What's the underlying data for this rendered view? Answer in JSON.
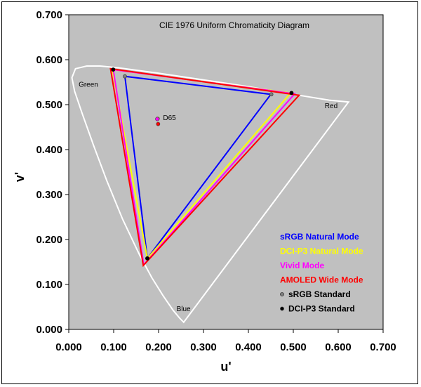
{
  "chart_data": {
    "type": "scatter",
    "title": "CIE 1976 Uniform Chromaticity Diagram",
    "xlabel": "u'",
    "ylabel": "v'",
    "xlim": [
      0,
      0.7
    ],
    "ylim": [
      0,
      0.7
    ],
    "x_ticks": [
      "0.000",
      "0.100",
      "0.200",
      "0.300",
      "0.400",
      "0.500",
      "0.600",
      "0.700"
    ],
    "y_ticks": [
      "0.000",
      "0.100",
      "0.200",
      "0.300",
      "0.400",
      "0.500",
      "0.600",
      "0.700"
    ],
    "grid": false,
    "legend_position": "bottom-right",
    "plot_background": "#c0c0c0",
    "locus": {
      "color": "#ffffff",
      "points": [
        [
          0.256,
          0.016
        ],
        [
          0.247,
          0.025
        ],
        [
          0.232,
          0.043
        ],
        [
          0.21,
          0.075
        ],
        [
          0.185,
          0.115
        ],
        [
          0.158,
          0.165
        ],
        [
          0.12,
          0.245
        ],
        [
          0.085,
          0.33
        ],
        [
          0.055,
          0.41
        ],
        [
          0.03,
          0.48
        ],
        [
          0.013,
          0.53
        ],
        [
          0.007,
          0.56
        ],
        [
          0.015,
          0.58
        ],
        [
          0.04,
          0.586
        ],
        [
          0.07,
          0.586
        ],
        [
          0.11,
          0.582
        ],
        [
          0.2,
          0.57
        ],
        [
          0.3,
          0.555
        ],
        [
          0.4,
          0.54
        ],
        [
          0.5,
          0.523
        ],
        [
          0.58,
          0.51
        ],
        [
          0.623,
          0.506
        ]
      ]
    },
    "region_labels": [
      {
        "text": "Green",
        "u": 0.022,
        "v": 0.54
      },
      {
        "text": "Red",
        "u": 0.57,
        "v": 0.492
      },
      {
        "text": "Blue",
        "u": 0.24,
        "v": 0.041
      }
    ],
    "series": [
      {
        "name": "sRGB Natural Mode",
        "color": "#0000ff",
        "kind": "triangle",
        "points": [
          [
            0.45,
            0.523
          ],
          [
            0.125,
            0.563
          ],
          [
            0.175,
            0.158
          ]
        ]
      },
      {
        "name": "DCI-P3 Natural Mode",
        "color": "#ffff00",
        "kind": "triangle",
        "points": [
          [
            0.494,
            0.526
          ],
          [
            0.097,
            0.578
          ],
          [
            0.175,
            0.158
          ]
        ]
      },
      {
        "name": "Vivid Mode",
        "color": "#ff00ff",
        "kind": "triangle",
        "points": [
          [
            0.503,
            0.524
          ],
          [
            0.099,
            0.578
          ],
          [
            0.167,
            0.144
          ]
        ]
      },
      {
        "name": "AMOLED Wide Mode",
        "color": "#ff0000",
        "kind": "triangle",
        "points": [
          [
            0.513,
            0.521
          ],
          [
            0.093,
            0.58
          ],
          [
            0.166,
            0.142
          ]
        ]
      },
      {
        "name": "sRGB Standard",
        "color": "#808080",
        "kind": "points",
        "points": [
          [
            0.451,
            0.523
          ],
          [
            0.125,
            0.563
          ],
          [
            0.175,
            0.158
          ]
        ]
      },
      {
        "name": "DCI-P3 Standard",
        "color": "#000000",
        "kind": "points",
        "points": [
          [
            0.496,
            0.526
          ],
          [
            0.099,
            0.578
          ],
          [
            0.175,
            0.158
          ]
        ]
      }
    ],
    "white_points": {
      "label": "D65",
      "points": [
        {
          "u": 0.198,
          "v": 0.469,
          "color": "#ffff00"
        },
        {
          "u": 0.197,
          "v": 0.468,
          "color": "#ff00ff"
        },
        {
          "u": 0.199,
          "v": 0.457,
          "color": "#ff0000"
        }
      ]
    }
  }
}
